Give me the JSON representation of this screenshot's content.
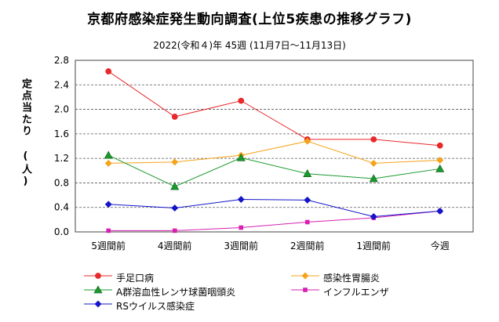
{
  "chart_data": {
    "type": "line",
    "title": "京都府感染症発生動向調査(上位5疾患の推移グラフ)",
    "subtitle": "2022(令和４)年 45週 (11月7日～11月13日)",
    "ylabel": "定点当たり (人)",
    "xlabel": "",
    "categories": [
      "5週間前",
      "4週間前",
      "3週間前",
      "2週間前",
      "1週間前",
      "今週"
    ],
    "yticks": [
      "0.0",
      "0.4",
      "0.8",
      "1.2",
      "1.6",
      "2.0",
      "2.4",
      "2.8"
    ],
    "ylim": [
      0,
      2.8
    ],
    "grid": "horizontal dashed",
    "legend_position": "bottom",
    "series": [
      {
        "name": "手足口病",
        "color": "#e8292b",
        "marker": "circle",
        "values": [
          2.62,
          1.88,
          2.14,
          1.51,
          1.51,
          1.41
        ]
      },
      {
        "name": "感染性胃腸炎",
        "color": "#f5a31a",
        "marker": "diamond",
        "values": [
          1.12,
          1.14,
          1.25,
          1.48,
          1.12,
          1.17
        ]
      },
      {
        "name": "A群溶血性レンサ球菌咽頭炎",
        "color": "#1a9a2e",
        "marker": "triangle",
        "values": [
          1.25,
          0.74,
          1.21,
          0.95,
          0.87,
          1.03
        ]
      },
      {
        "name": "インフルエンザ",
        "color": "#d81fb0",
        "marker": "square",
        "values": [
          0.02,
          0.02,
          0.07,
          0.16,
          0.23,
          0.34
        ]
      },
      {
        "name": "RSウイルス感染症",
        "color": "#1414c8",
        "marker": "diamond",
        "values": [
          0.45,
          0.39,
          0.53,
          0.52,
          0.25,
          0.34
        ]
      }
    ]
  }
}
